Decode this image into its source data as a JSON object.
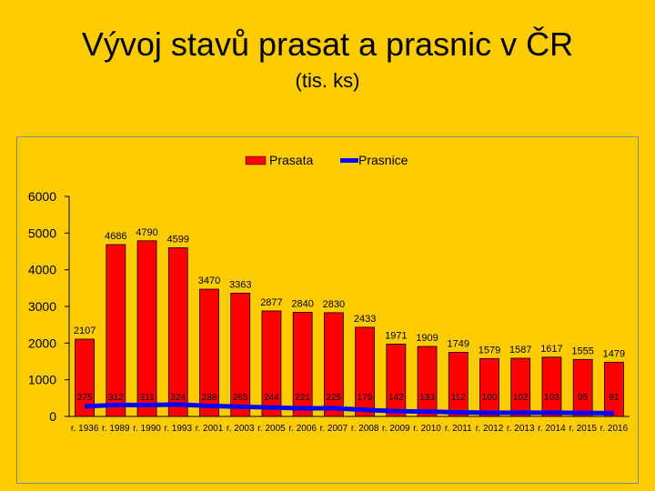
{
  "slide": {
    "title": "Vývoj stavů prasat a prasnic v ČR",
    "subtitle": "(tis. ks)"
  },
  "colors": {
    "background": "#FFCC00",
    "bar_fill": "#FF0000",
    "line": "#0000FF"
  },
  "chart_data": {
    "type": "bar",
    "title": "",
    "xlabel": "",
    "ylabel": "",
    "ylim": [
      0,
      6000
    ],
    "yticks": [
      "0",
      "1000",
      "2000",
      "3000",
      "4000",
      "5000",
      "6000"
    ],
    "grid": false,
    "legend_position": "top",
    "categories": [
      "r. 1936",
      "r. 1989",
      "r. 1990",
      "r. 1993",
      "r. 2001",
      "r. 2003",
      "r. 2005",
      "r. 2006",
      "r. 2007",
      "r. 2008",
      "r. 2009",
      "r. 2010",
      "r. 2011",
      "r. 2012",
      "r. 2013",
      "r. 2014",
      "r. 2015",
      "r. 2016"
    ],
    "series": [
      {
        "name": "Prasata",
        "kind": "bar",
        "values": [
          2107,
          4686,
          4790,
          4599,
          3470,
          3363,
          2877,
          2840,
          2830,
          2433,
          1971,
          1909,
          1749,
          1579,
          1587,
          1617,
          1555,
          1479
        ],
        "labels": [
          "2107",
          "4686",
          "4790",
          "4599",
          "3470",
          "3363",
          "2877",
          "2840",
          "2830",
          "2433",
          "1971",
          "1909",
          "1749",
          "1579",
          "1587",
          "1617",
          "1555",
          "1479"
        ]
      },
      {
        "name": "Prasnice",
        "kind": "line",
        "values": [
          275,
          312,
          311,
          324,
          288,
          265,
          244,
          221,
          225,
          179,
          142,
          133,
          112,
          100,
          102,
          103,
          95,
          91
        ],
        "labels": [
          "275",
          "312",
          "311",
          "324",
          "288",
          "265",
          "244",
          "221",
          "225",
          "179",
          "142",
          "133",
          "112",
          "100",
          "102",
          "103",
          "95",
          "91"
        ]
      }
    ]
  }
}
